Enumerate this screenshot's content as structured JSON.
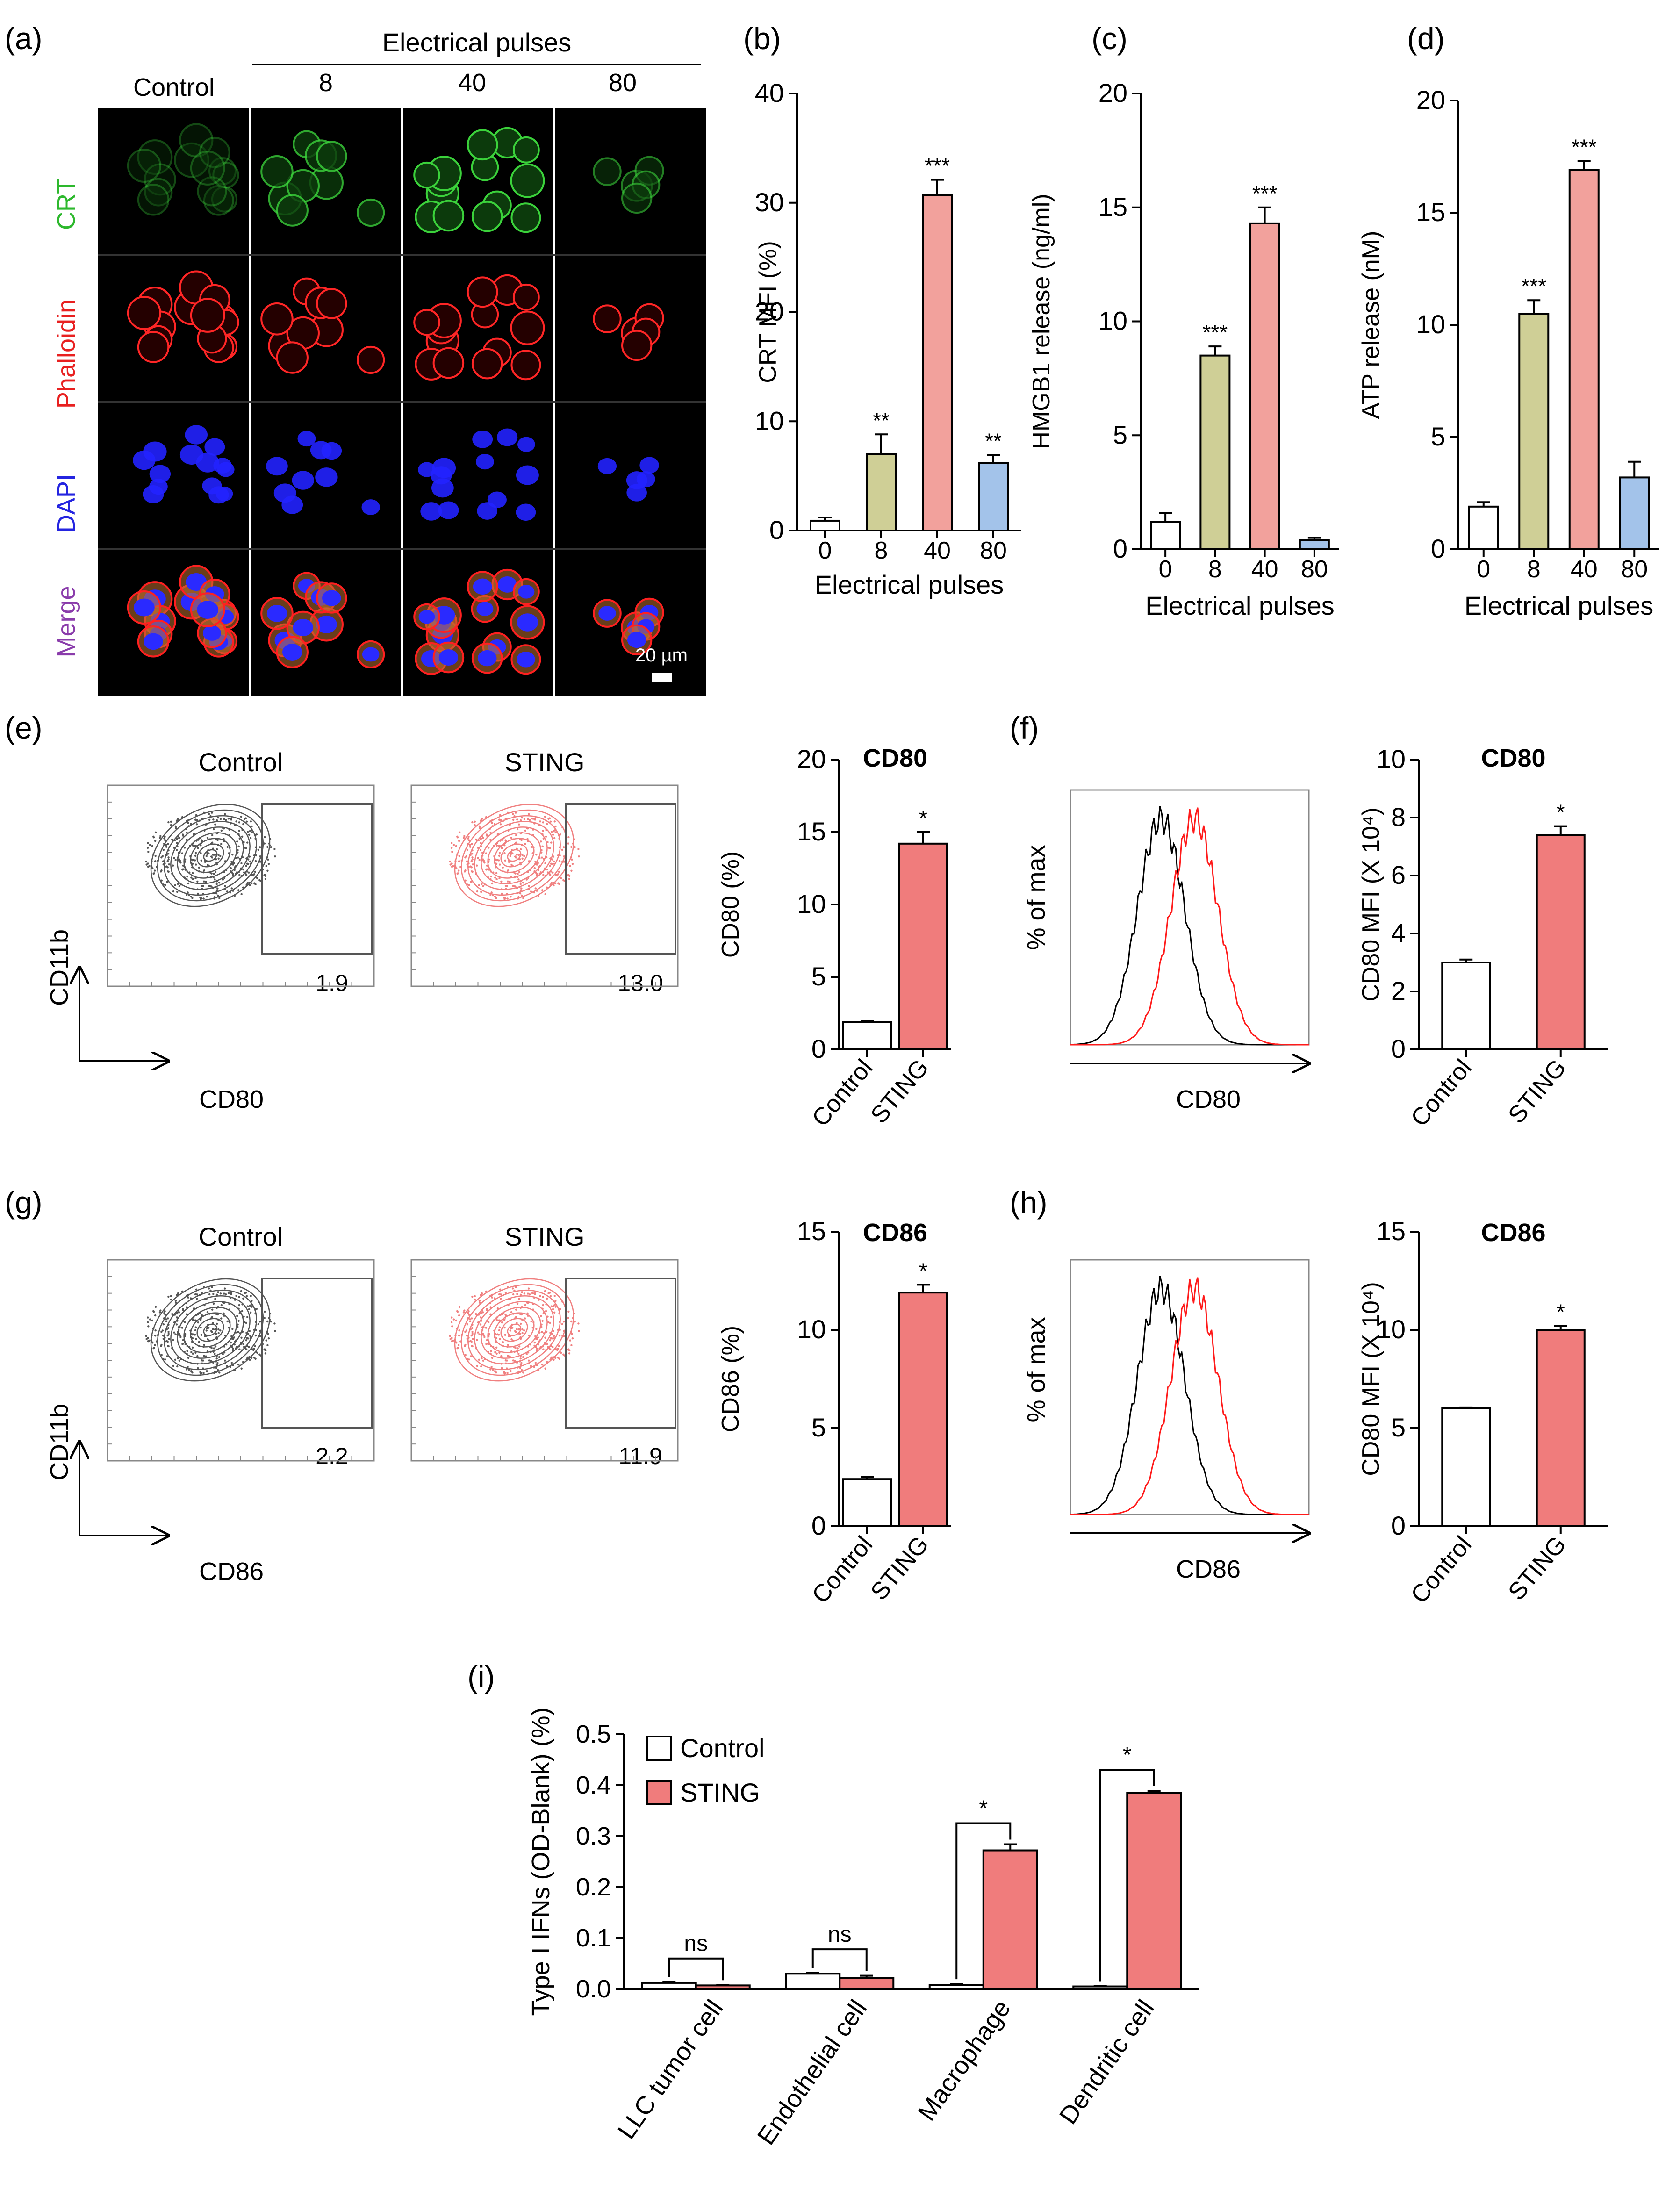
{
  "colors": {
    "olive": "#cfcf96",
    "salmon": "#f2a19c",
    "blue": "#a3c3ea",
    "red": "#f07c7c",
    "white": "#ffffff",
    "crt_label": "#2db82d",
    "phalloidin_label": "#e82020",
    "dapi_label": "#2424e0",
    "merge_label": "#8a3cab"
  },
  "panel_letters": [
    "(a)",
    "(b)",
    "(c)",
    "(d)",
    "(e)",
    "(f)",
    "(g)",
    "(h)",
    "(i)"
  ],
  "panel_a": {
    "header": "Electrical pulses",
    "columns": [
      "Control",
      "8",
      "40",
      "80"
    ],
    "rows": [
      "CRT",
      "Phalloidin",
      "DAPI",
      "Merge"
    ],
    "scale_bar": "20 µm"
  },
  "panel_e": {
    "plots": [
      {
        "title": "Control",
        "gate_value": "1.9",
        "color": "#555555"
      },
      {
        "title": "STING",
        "gate_value": "13.0",
        "color": "#f08080"
      }
    ],
    "y_axis": "CD11b",
    "x_axis": "CD80"
  },
  "panel_g": {
    "plots": [
      {
        "title": "Control",
        "gate_value": "2.2",
        "color": "#555555"
      },
      {
        "title": "STING",
        "gate_value": "11.9",
        "color": "#f08080"
      }
    ],
    "y_axis": "CD11b",
    "x_axis": "CD86"
  },
  "panel_f_hist": {
    "ylabel": "% of max",
    "xlabel": "CD80"
  },
  "panel_h_hist": {
    "ylabel": "% of max",
    "xlabel": "CD86"
  },
  "chart_data": [
    {
      "id": "b",
      "type": "bar",
      "categories": [
        "0",
        "8",
        "40",
        "80"
      ],
      "values": [
        0.9,
        7.0,
        30.7,
        6.2
      ],
      "errors": [
        0.3,
        1.8,
        1.4,
        0.7
      ],
      "sig": [
        "",
        "**",
        "***",
        "**"
      ],
      "colors": [
        "#ffffff",
        "#cfcf96",
        "#f2a19c",
        "#a3c3ea"
      ],
      "ylabel": "CRT MFI (%)",
      "xlabel": "Electrical pulses",
      "ylim": [
        0,
        40
      ],
      "yticks": [
        0,
        10,
        20,
        30,
        40
      ]
    },
    {
      "id": "c",
      "type": "bar",
      "categories": [
        "0",
        "8",
        "40",
        "80"
      ],
      "values": [
        1.2,
        8.5,
        14.3,
        0.4
      ],
      "errors": [
        0.4,
        0.4,
        0.7,
        0.1
      ],
      "sig": [
        "",
        "***",
        "***",
        ""
      ],
      "colors": [
        "#ffffff",
        "#cfcf96",
        "#f2a19c",
        "#a3c3ea"
      ],
      "ylabel": "HMGB1 release (ng/ml)",
      "xlabel": "Electrical pulses",
      "ylim": [
        0,
        20
      ],
      "yticks": [
        0,
        5,
        10,
        15,
        20
      ]
    },
    {
      "id": "d",
      "type": "bar",
      "categories": [
        "0",
        "8",
        "40",
        "80"
      ],
      "values": [
        1.9,
        10.5,
        16.9,
        3.2
      ],
      "errors": [
        0.2,
        0.6,
        0.4,
        0.7
      ],
      "sig": [
        "",
        "***",
        "***",
        ""
      ],
      "colors": [
        "#ffffff",
        "#cfcf96",
        "#f2a19c",
        "#a3c3ea"
      ],
      "ylabel": "ATP release (nM)",
      "xlabel": "Electrical pulses",
      "ylim": [
        0,
        20
      ],
      "yticks": [
        0,
        5,
        10,
        15,
        20
      ]
    },
    {
      "id": "e_bar",
      "type": "bar",
      "title": "CD80",
      "categories": [
        "Control",
        "STING"
      ],
      "values": [
        1.9,
        14.2
      ],
      "errors": [
        0.1,
        0.8
      ],
      "sig": [
        "",
        "*"
      ],
      "colors": [
        "#ffffff",
        "#f07c7c"
      ],
      "ylabel": "CD80 (%)",
      "ylim": [
        0,
        20
      ],
      "yticks": [
        0,
        5,
        10,
        15,
        20
      ]
    },
    {
      "id": "f_bar",
      "type": "bar",
      "title": "CD80",
      "categories": [
        "Control",
        "STING"
      ],
      "values": [
        3.0,
        7.4
      ],
      "errors": [
        0.1,
        0.3
      ],
      "sig": [
        "",
        "*"
      ],
      "colors": [
        "#ffffff",
        "#f07c7c"
      ],
      "ylabel": "CD80 MFI (X 10⁴)",
      "ylim": [
        0,
        10
      ],
      "yticks": [
        0,
        2,
        4,
        6,
        8,
        10
      ]
    },
    {
      "id": "g_bar",
      "type": "bar",
      "title": "CD86",
      "categories": [
        "Control",
        "STING"
      ],
      "values": [
        2.4,
        11.9
      ],
      "errors": [
        0.1,
        0.4
      ],
      "sig": [
        "",
        "*"
      ],
      "colors": [
        "#ffffff",
        "#f07c7c"
      ],
      "ylabel": "CD86 (%)",
      "ylim": [
        0,
        15
      ],
      "yticks": [
        0,
        5,
        10,
        15
      ]
    },
    {
      "id": "h_bar",
      "type": "bar",
      "title": "CD86",
      "categories": [
        "Control",
        "STING"
      ],
      "values": [
        6.0,
        10.0
      ],
      "errors": [
        0.05,
        0.2
      ],
      "sig": [
        "",
        "*"
      ],
      "colors": [
        "#ffffff",
        "#f07c7c"
      ],
      "ylabel": "CD80 MFI (X 10⁴)",
      "ylim": [
        0,
        15
      ],
      "yticks": [
        0,
        5,
        10,
        15
      ]
    },
    {
      "id": "i",
      "type": "bar",
      "categories": [
        "LLC tumor cell",
        "Endothelial cell",
        "Macrophage",
        "Dendritic cell"
      ],
      "series": [
        {
          "name": "Control",
          "values": [
            0.012,
            0.03,
            0.008,
            0.005
          ],
          "errors": [
            0.002,
            0.002,
            0.002,
            0.001
          ]
        },
        {
          "name": "STING",
          "values": [
            0.007,
            0.022,
            0.272,
            0.385
          ],
          "errors": [
            0.001,
            0.004,
            0.012,
            0.004
          ]
        }
      ],
      "brackets": [
        "ns",
        "ns",
        "*",
        "*"
      ],
      "ylabel": "Type I IFNs (OD-Blank) (%)",
      "ylim": [
        0,
        0.5
      ],
      "yticks": [
        0.0,
        0.1,
        0.2,
        0.3,
        0.4,
        0.5
      ],
      "legend_position": "top-left"
    }
  ]
}
